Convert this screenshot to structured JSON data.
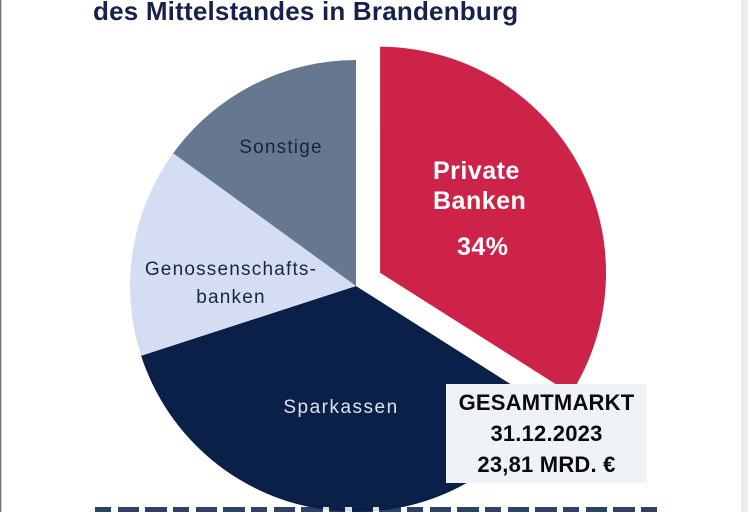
{
  "title": "des Mittelstandes in Brandenburg",
  "chart_data": {
    "type": "pie",
    "title": "des Mittelstandes in Brandenburg",
    "legend_position": "none",
    "labels_on_slices": true,
    "slices": [
      {
        "label": "Private Banken",
        "value": 34,
        "pct_label": "34%",
        "labeled": true,
        "estimated": false,
        "color": "#CE2348",
        "text_color": "#FFFFFF",
        "exploded": true
      },
      {
        "label": "Sparkassen",
        "value": 36,
        "pct_label": "",
        "labeled": false,
        "estimated": true,
        "color": "#0A2048",
        "text_color": "#DCE3F0",
        "exploded": false
      },
      {
        "label": "Genossenschaftsbanken",
        "value": 15,
        "pct_label": "",
        "labeled": false,
        "estimated": true,
        "color": "#D5DDF3",
        "text_color": "#17263F",
        "exploded": false
      },
      {
        "label": "Sonstige",
        "value": 15,
        "pct_label": "",
        "labeled": false,
        "estimated": true,
        "color": "#66788F",
        "text_color": "#1A2433",
        "exploded": false
      }
    ],
    "start_angle_deg_from_north": 0,
    "direction": "clockwise"
  },
  "labels": {
    "private_line1": "Private",
    "private_line2": "Banken",
    "private_pct": "34%",
    "sonstige": "Sonstige",
    "genossen_line1": "Genossenschafts-",
    "genossen_line2": "banken",
    "sparkassen": "Sparkassen"
  },
  "info_box": {
    "line1": "GESAMTMARKT",
    "line2": "31.12.2023",
    "line3": "23,81 MRD. €"
  },
  "colors": {
    "background": "#FFFFFF",
    "title_text": "#15224E",
    "private_banken": "#CE2348",
    "sparkassen": "#0A2048",
    "genossenschaftsbanken": "#D5DDF3",
    "sonstige": "#66788F",
    "info_box_bg": "#EFF2F7",
    "info_box_text": "#0B0B0D"
  }
}
